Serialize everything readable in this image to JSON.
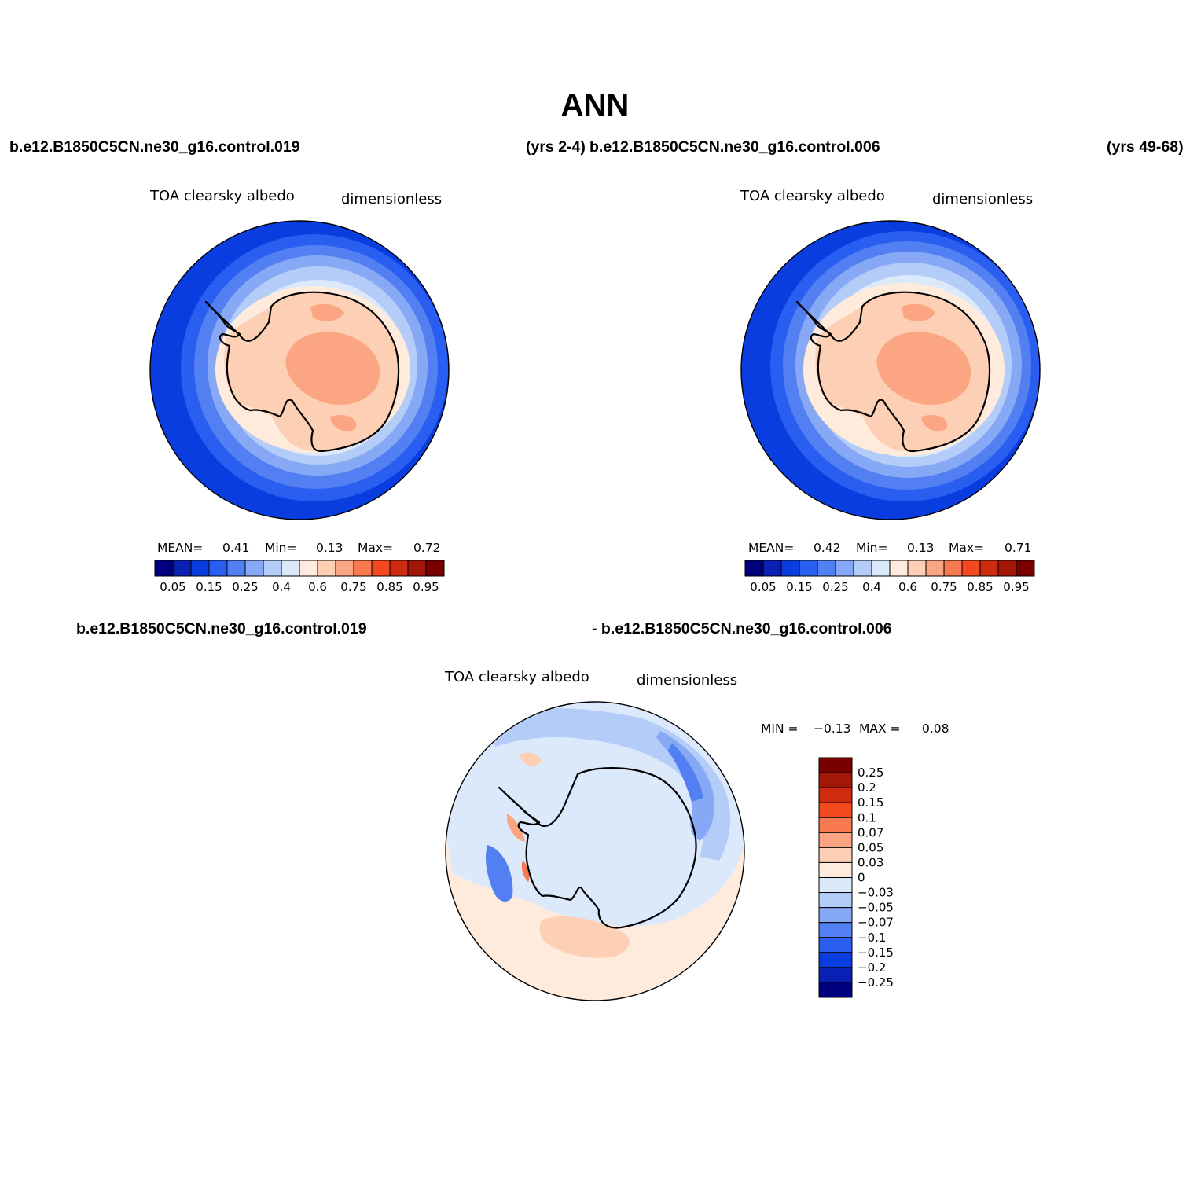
{
  "page": {
    "title": "ANN",
    "case_a": "b.e12.B1850C5CN.ne30_g16.control.019",
    "case_a_years": "(yrs 2-4)",
    "case_b": "b.e12.B1850C5CN.ne30_g16.control.006",
    "case_b_years": "(yrs 49-68)",
    "diff_case_a": "b.e12.B1850C5CN.ne30_g16.control.019",
    "diff_case_b": "- b.e12.B1850C5CN.ne30_g16.control.006"
  },
  "panels": [
    {
      "variable": "TOA clearsky albedo",
      "units": "dimensionless",
      "stats": {
        "mean_label": "MEAN=",
        "mean": "0.41",
        "min_label": "Min=",
        "min": "0.13",
        "max_label": "Max=",
        "max": "0.72"
      }
    },
    {
      "variable": "TOA clearsky albedo",
      "units": "dimensionless",
      "stats": {
        "mean_label": "MEAN=",
        "mean": "0.42",
        "min_label": "Min=",
        "min": "0.13",
        "max_label": "Max=",
        "max": "0.71"
      }
    },
    {
      "variable": "TOA clearsky albedo",
      "units": "dimensionless",
      "stats": {
        "min_label": "MIN =",
        "min": "−0.13",
        "max_label": "MAX =",
        "max": "0.08"
      }
    }
  ],
  "colorbar_abs": {
    "tick_labels": [
      "0.05",
      "0.15",
      "0.25",
      "0.4",
      "0.6",
      "0.75",
      "0.85",
      "0.95"
    ],
    "colors": [
      "#00007f",
      "#0a1fb4",
      "#0a3de0",
      "#2a5ef0",
      "#527ff2",
      "#87a8f5",
      "#b4ccf8",
      "#dbe9fb",
      "#feebdc",
      "#fdcfb4",
      "#fba582",
      "#f97a50",
      "#f24a1e",
      "#cf2b10",
      "#a31708",
      "#7a0000"
    ]
  },
  "colorbar_diff": {
    "tick_labels": [
      "0.25",
      "0.2",
      "0.15",
      "0.1",
      "0.07",
      "0.05",
      "0.03",
      "0",
      "−0.03",
      "−0.05",
      "−0.07",
      "−0.1",
      "−0.15",
      "−0.2",
      "−0.25"
    ],
    "colors": [
      "#7a0000",
      "#a31708",
      "#cf2b10",
      "#f24a1e",
      "#f97a50",
      "#fba582",
      "#fdcfb4",
      "#feebdc",
      "#dbe9fb",
      "#b4ccf8",
      "#87a8f5",
      "#527ff2",
      "#2a5ef0",
      "#0a3de0",
      "#0a1fb4",
      "#00007f"
    ]
  }
}
